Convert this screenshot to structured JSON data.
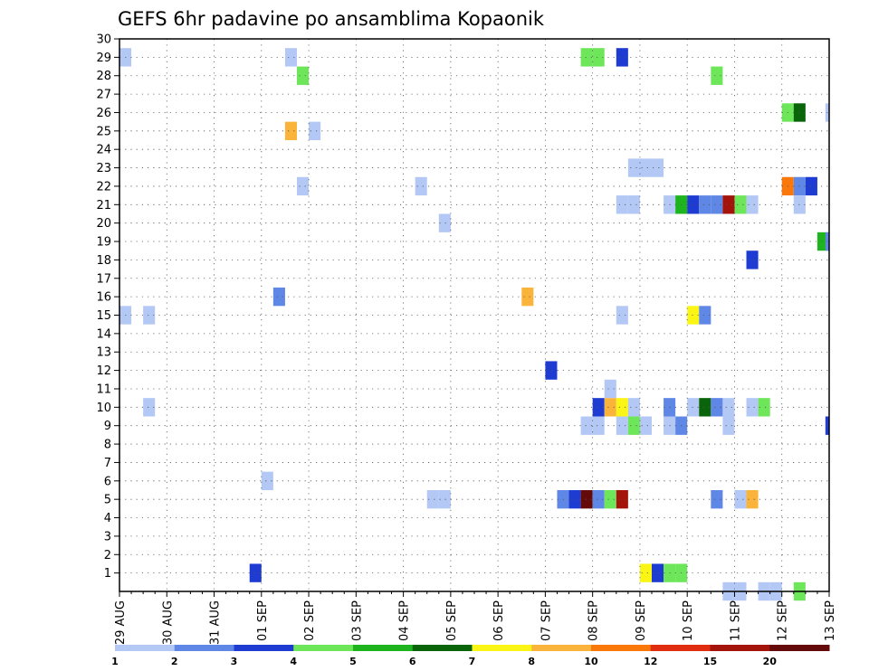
{
  "chart_data": {
    "type": "heatmap",
    "title": "GEFS 6hr padavine po ansamblima Kopaonik",
    "xlabel": "",
    "ylabel": "",
    "x_ticks": [
      "29 AUG",
      "30 AUG",
      "31 AUG",
      "01 SEP",
      "02 SEP",
      "03 SEP",
      "04 SEP",
      "05 SEP",
      "06 SEP",
      "07 SEP",
      "08 SEP",
      "09 SEP",
      "10 SEP",
      "11 SEP",
      "12 SEP",
      "13 SEP"
    ],
    "y_ticks": [
      "1",
      "2",
      "3",
      "4",
      "5",
      "6",
      "7",
      "8",
      "9",
      "10",
      "11",
      "12",
      "13",
      "14",
      "15",
      "16",
      "17",
      "18",
      "19",
      "20",
      "21",
      "22",
      "23",
      "24",
      "25",
      "26",
      "27",
      "28",
      "29",
      "30"
    ],
    "x_range_days": [
      0,
      15
    ],
    "y_range": [
      0,
      30
    ],
    "grid": true,
    "legend": {
      "position": "bottom",
      "thresholds": [
        "1",
        "2",
        "3",
        "4",
        "5",
        "6",
        "7",
        "8",
        "10",
        "12",
        "15",
        "20"
      ],
      "colors": [
        "#b4c8f5",
        "#5f87e6",
        "#1e3cd2",
        "#6ee65a",
        "#1eb41e",
        "#0a640a",
        "#faf514",
        "#fab43c",
        "#fa780a",
        "#e12d0f",
        "#a5140a",
        "#640a0a"
      ]
    },
    "cells": [
      {
        "x": 0.0,
        "y": 29,
        "v": 1
      },
      {
        "x": 0.0,
        "y": 15,
        "v": 1
      },
      {
        "x": 0.5,
        "y": 15,
        "v": 1
      },
      {
        "x": 0.5,
        "y": 10,
        "v": 1
      },
      {
        "x": 2.75,
        "y": 1,
        "v": 3
      },
      {
        "x": 3.0,
        "y": 6,
        "v": 1
      },
      {
        "x": 3.25,
        "y": 16,
        "v": 2
      },
      {
        "x": 3.5,
        "y": 29,
        "v": 1
      },
      {
        "x": 3.5,
        "y": 25,
        "v": 8
      },
      {
        "x": 3.75,
        "y": 28,
        "v": 4
      },
      {
        "x": 3.75,
        "y": 22,
        "v": 1
      },
      {
        "x": 4.0,
        "y": 25,
        "v": 1
      },
      {
        "x": 6.25,
        "y": 22,
        "v": 1
      },
      {
        "x": 6.5,
        "y": 5,
        "v": 1
      },
      {
        "x": 6.75,
        "y": 5,
        "v": 1
      },
      {
        "x": 6.75,
        "y": 20,
        "v": 1
      },
      {
        "x": 8.5,
        "y": 16,
        "v": 8
      },
      {
        "x": 9.0,
        "y": 12,
        "v": 3
      },
      {
        "x": 9.25,
        "y": 5,
        "v": 2
      },
      {
        "x": 9.5,
        "y": 5,
        "v": 3
      },
      {
        "x": 9.75,
        "y": 5,
        "v": 20
      },
      {
        "x": 10.0,
        "y": 5,
        "v": 2
      },
      {
        "x": 10.25,
        "y": 5,
        "v": 4
      },
      {
        "x": 10.5,
        "y": 5,
        "v": 15
      },
      {
        "x": 9.75,
        "y": 9,
        "v": 1
      },
      {
        "x": 10.0,
        "y": 9,
        "v": 1
      },
      {
        "x": 10.5,
        "y": 9,
        "v": 1
      },
      {
        "x": 10.75,
        "y": 9,
        "v": 4
      },
      {
        "x": 11.0,
        "y": 9,
        "v": 1
      },
      {
        "x": 10.0,
        "y": 10,
        "v": 3
      },
      {
        "x": 10.25,
        "y": 10,
        "v": 8
      },
      {
        "x": 10.5,
        "y": 10,
        "v": 7
      },
      {
        "x": 10.75,
        "y": 10,
        "v": 1
      },
      {
        "x": 10.25,
        "y": 11,
        "v": 1
      },
      {
        "x": 9.75,
        "y": 29,
        "v": 4
      },
      {
        "x": 10.0,
        "y": 29,
        "v": 4
      },
      {
        "x": 10.5,
        "y": 29,
        "v": 3
      },
      {
        "x": 10.5,
        "y": 15,
        "v": 1
      },
      {
        "x": 10.5,
        "y": 21,
        "v": 1
      },
      {
        "x": 10.75,
        "y": 21,
        "v": 1
      },
      {
        "x": 10.75,
        "y": 23,
        "v": 1
      },
      {
        "x": 11.0,
        "y": 23,
        "v": 1
      },
      {
        "x": 11.25,
        "y": 23,
        "v": 1
      },
      {
        "x": 11.0,
        "y": 1,
        "v": 7
      },
      {
        "x": 11.25,
        "y": 1,
        "v": 3
      },
      {
        "x": 11.5,
        "y": 1,
        "v": 4
      },
      {
        "x": 11.75,
        "y": 1,
        "v": 4
      },
      {
        "x": 11.5,
        "y": 9,
        "v": 1
      },
      {
        "x": 11.75,
        "y": 9,
        "v": 2
      },
      {
        "x": 11.5,
        "y": 10,
        "v": 2
      },
      {
        "x": 11.5,
        "y": 21,
        "v": 1
      },
      {
        "x": 11.75,
        "y": 21,
        "v": 5
      },
      {
        "x": 12.0,
        "y": 21,
        "v": 3
      },
      {
        "x": 12.25,
        "y": 21,
        "v": 2
      },
      {
        "x": 12.5,
        "y": 21,
        "v": 2
      },
      {
        "x": 12.75,
        "y": 21,
        "v": 15
      },
      {
        "x": 13.0,
        "y": 21,
        "v": 4
      },
      {
        "x": 13.25,
        "y": 21,
        "v": 1
      },
      {
        "x": 12.0,
        "y": 10,
        "v": 1
      },
      {
        "x": 12.25,
        "y": 10,
        "v": 6
      },
      {
        "x": 12.5,
        "y": 10,
        "v": 2
      },
      {
        "x": 12.75,
        "y": 10,
        "v": 1
      },
      {
        "x": 13.25,
        "y": 10,
        "v": 1
      },
      {
        "x": 13.5,
        "y": 10,
        "v": 4
      },
      {
        "x": 12.75,
        "y": 9,
        "v": 1
      },
      {
        "x": 12.0,
        "y": 15,
        "v": 7
      },
      {
        "x": 12.25,
        "y": 15,
        "v": 2
      },
      {
        "x": 12.5,
        "y": 28,
        "v": 4
      },
      {
        "x": 12.5,
        "y": 5,
        "v": 2
      },
      {
        "x": 13.0,
        "y": 5,
        "v": 1
      },
      {
        "x": 13.25,
        "y": 5,
        "v": 8
      },
      {
        "x": 12.75,
        "y": 0,
        "v": 1
      },
      {
        "x": 13.0,
        "y": 0,
        "v": 1
      },
      {
        "x": 13.5,
        "y": 0,
        "v": 1
      },
      {
        "x": 13.75,
        "y": 0,
        "v": 1
      },
      {
        "x": 14.25,
        "y": 0,
        "v": 4
      },
      {
        "x": 13.25,
        "y": 18,
        "v": 3
      },
      {
        "x": 14.0,
        "y": 26,
        "v": 4
      },
      {
        "x": 14.25,
        "y": 26,
        "v": 6
      },
      {
        "x": 14.0,
        "y": 22,
        "v": 10
      },
      {
        "x": 14.25,
        "y": 22,
        "v": 2
      },
      {
        "x": 14.5,
        "y": 22,
        "v": 3
      },
      {
        "x": 14.25,
        "y": 21,
        "v": 1
      },
      {
        "x": 14.75,
        "y": 19,
        "v": 5
      },
      {
        "x": 14.92,
        "y": 19,
        "v": 2
      },
      {
        "x": 14.92,
        "y": 9,
        "v": 3
      },
      {
        "x": 14.92,
        "y": 26,
        "v": 1
      }
    ]
  }
}
